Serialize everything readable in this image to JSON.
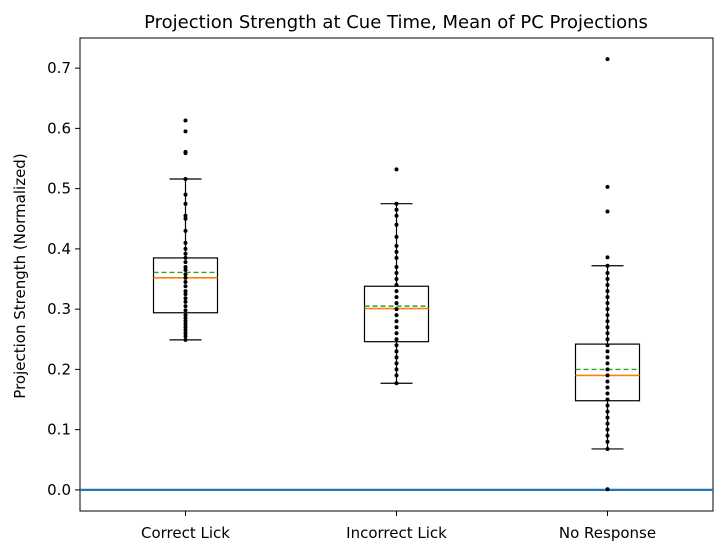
{
  "chart_data": {
    "type": "box",
    "title": "Projection Strength at Cue Time, Mean of PC Projections",
    "xlabel": "",
    "ylabel": "Projection Strength (Normalized)",
    "ylim": [
      -0.035,
      0.75
    ],
    "yticks": [
      "0.0",
      "0.1",
      "0.2",
      "0.3",
      "0.4",
      "0.5",
      "0.6",
      "0.7"
    ],
    "categories": [
      "Correct Lick",
      "Incorrect Lick",
      "No Response"
    ],
    "baseline": {
      "y": 0.0,
      "color": "#1f77b4"
    },
    "colors": {
      "median": "#ff7f0e",
      "mean": "#2ca02c",
      "box": "#000000",
      "points": "#000000"
    },
    "boxes": [
      {
        "label": "Correct Lick",
        "whisker_low": 0.249,
        "q1": 0.294,
        "median": 0.352,
        "mean": 0.361,
        "q3": 0.385,
        "whisker_high": 0.516,
        "points": [
          0.613,
          0.595,
          0.561,
          0.559,
          0.516,
          0.49,
          0.475,
          0.455,
          0.45,
          0.43,
          0.41,
          0.4,
          0.392,
          0.385,
          0.378,
          0.37,
          0.365,
          0.358,
          0.352,
          0.345,
          0.338,
          0.33,
          0.325,
          0.318,
          0.312,
          0.305,
          0.298,
          0.29,
          0.285,
          0.28,
          0.275,
          0.27,
          0.265,
          0.26,
          0.255,
          0.249
        ]
      },
      {
        "label": "Incorrect Lick",
        "whisker_low": 0.177,
        "q1": 0.246,
        "median": 0.301,
        "mean": 0.305,
        "q3": 0.338,
        "whisker_high": 0.475,
        "points": [
          0.532,
          0.475,
          0.465,
          0.455,
          0.44,
          0.42,
          0.405,
          0.395,
          0.385,
          0.37,
          0.36,
          0.35,
          0.34,
          0.33,
          0.32,
          0.31,
          0.3,
          0.29,
          0.28,
          0.27,
          0.26,
          0.25,
          0.24,
          0.23,
          0.22,
          0.21,
          0.2,
          0.19,
          0.177
        ]
      },
      {
        "label": "No Response",
        "whisker_low": 0.068,
        "q1": 0.148,
        "median": 0.19,
        "mean": 0.2,
        "q3": 0.242,
        "whisker_high": 0.372,
        "points": [
          0.715,
          0.503,
          0.462,
          0.386,
          0.372,
          0.36,
          0.35,
          0.34,
          0.33,
          0.32,
          0.31,
          0.3,
          0.29,
          0.28,
          0.27,
          0.26,
          0.25,
          0.24,
          0.23,
          0.22,
          0.21,
          0.2,
          0.19,
          0.18,
          0.17,
          0.16,
          0.15,
          0.14,
          0.13,
          0.12,
          0.11,
          0.1,
          0.09,
          0.08,
          0.068,
          0.001
        ]
      }
    ]
  }
}
